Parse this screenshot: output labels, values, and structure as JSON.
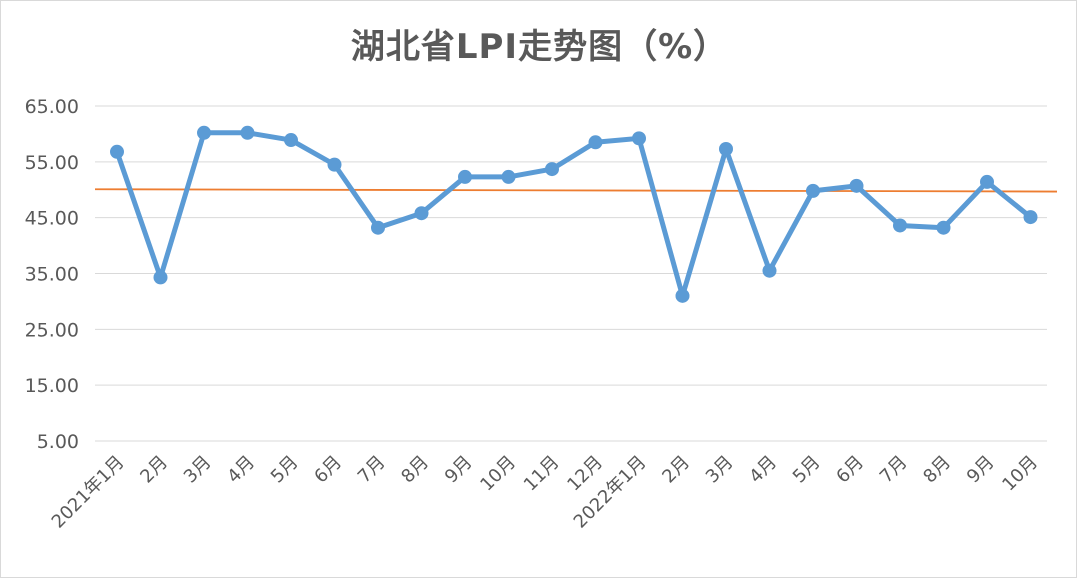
{
  "chart_data": {
    "type": "line",
    "title": "湖北省LPI走势图（%）",
    "xlabel": "",
    "ylabel": "",
    "categories": [
      "2021年1月",
      "2月",
      "3月",
      "4月",
      "5月",
      "6月",
      "7月",
      "8月",
      "9月",
      "10月",
      "11月",
      "12月",
      "2022年1月",
      "2月",
      "3月",
      "4月",
      "5月",
      "6月",
      "7月",
      "8月",
      "9月",
      "10月"
    ],
    "y_ticks": [
      "65.00",
      "55.00",
      "45.00",
      "35.00",
      "25.00",
      "15.00",
      "5.00"
    ],
    "y_tick_values": [
      65,
      55,
      45,
      35,
      25,
      15,
      5
    ],
    "ylim": [
      0,
      65
    ],
    "grid": true,
    "legend": "none",
    "series": [
      {
        "values": [
          56.8,
          34.3,
          60.2,
          60.2,
          58.9,
          54.5,
          43.2,
          45.8,
          52.3,
          52.3,
          53.7,
          58.5,
          59.2,
          31.0,
          57.3,
          35.5,
          49.8,
          50.7,
          43.6,
          43.2,
          51.4,
          45.1
        ],
        "color": "#5b9bd5"
      }
    ],
    "reference_line": {
      "value": 50,
      "color": "#ed7d31"
    },
    "gridline_color": "#d9d9d9"
  }
}
